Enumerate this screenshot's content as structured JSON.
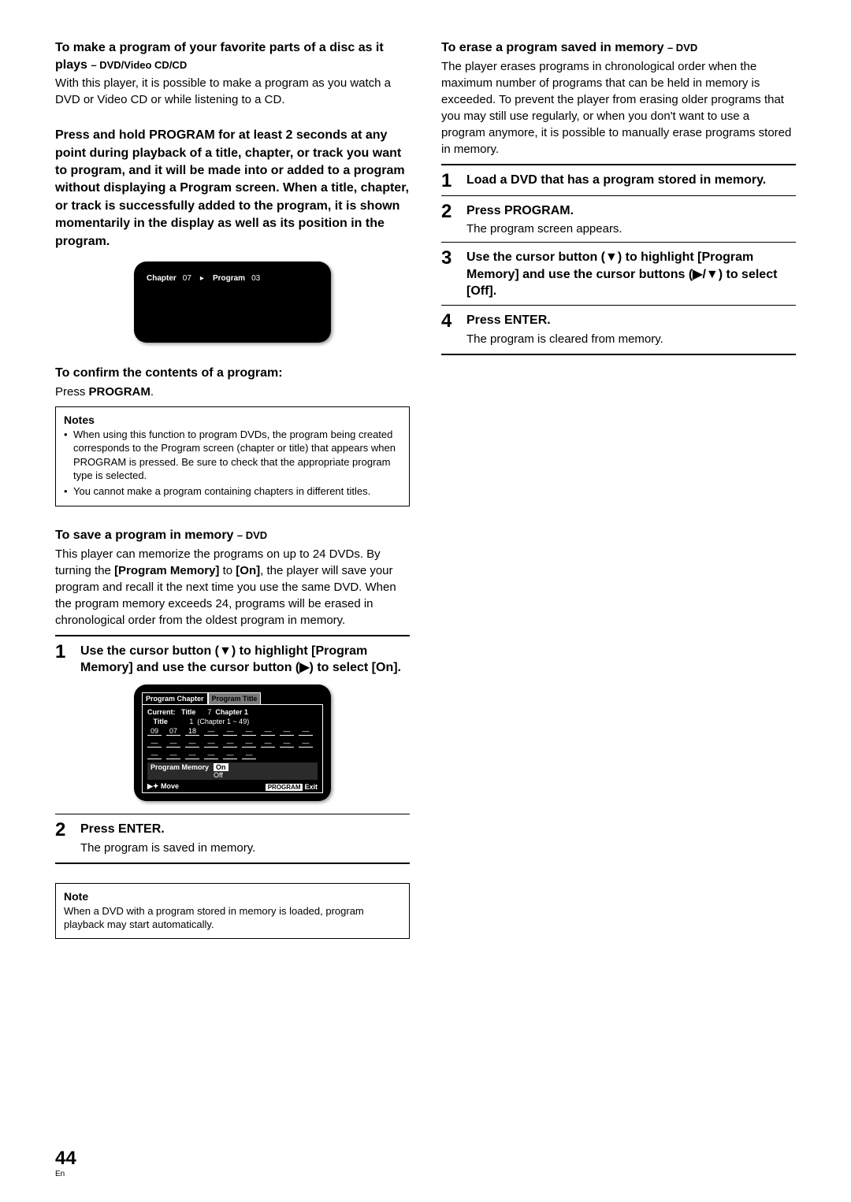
{
  "left": {
    "h1": "To make a program of your favorite parts of a disc as it plays",
    "h1sub": "– DVD/Video CD/CD",
    "p1": "With this player, it is possible to make a program as you watch a DVD or Video CD or while listening to a CD.",
    "bold": "Press and hold PROGRAM for at least 2 seconds at any point during playback of a title, chapter, or track you want to program, and it will be made into or added to a program without displaying a Program screen. When a title, chapter, or track is successfully added to the program, it is shown momentarily in the display as well as its position in the program.",
    "screen1": {
      "chapter_label": "Chapter",
      "chapter_val": "07",
      "program_label": "Program",
      "program_val": "03"
    },
    "confirm_h": "To confirm the contents of a program:",
    "confirm_p_pre": "Press ",
    "confirm_p_bold": "PROGRAM",
    "confirm_p_post": ".",
    "notes_title": "Notes",
    "notes": [
      "When using this function to program DVDs, the program being created corresponds to the Program screen (chapter or title) that appears when PROGRAM is pressed. Be sure to check that the appropriate program type is selected.",
      "You cannot make a program containing chapters in different titles."
    ],
    "save_h": "To save a program in memory",
    "save_sub": "– DVD",
    "save_p_a": "This player can memorize the programs on up to 24 DVDs. By turning the ",
    "save_p_b": "[Program Memory]",
    "save_p_c": " to ",
    "save_p_d": "[On]",
    "save_p_e": ", the player will save your program and recall it the next time you use the same DVD. When the program memory exceeds 24, programs will be erased in chronological order from the oldest program in memory.",
    "step1": "Use the cursor button (▼) to highlight [Program Memory] and use the cursor button (▶) to select [On].",
    "prog_screen": {
      "tab1": "Program Chapter",
      "tab2": "Program Title",
      "current": "Current:",
      "title_lbl": "Title",
      "title_val": "7",
      "chapter_lbl": "Chapter 1",
      "title2_lbl": "Title",
      "title2_val": "1",
      "chap_range": "(Chapter 1 ~ 49)",
      "slots": [
        "09",
        "07",
        "18",
        "—",
        "—",
        "—",
        "—",
        "—",
        "—",
        "—",
        "—",
        "—",
        "—",
        "—",
        "—",
        "—",
        "—",
        "—",
        "—",
        "—",
        "—",
        "—",
        "—",
        "—"
      ],
      "pm_label": "Program Memory",
      "pm_on": "On",
      "pm_off": "Off",
      "move": "Move",
      "prog_btn": "PROGRAM",
      "exit": "Exit"
    },
    "step2_title": "Press ENTER",
    "step2_desc": "The program is saved in memory.",
    "note2_title": "Note",
    "note2_text": "When a DVD with a program stored in memory is loaded, program playback may start automatically."
  },
  "right": {
    "h1": "To erase a program saved in memory",
    "h1sub": "– DVD",
    "p1": "The player erases programs in chronological order when the maximum number of programs that can be held in memory is exceeded. To prevent the player from erasing older programs that you may still use regularly, or when you don't want to use a program anymore, it is possible to manually erase programs stored in memory.",
    "step1": "Load a DVD that has a program stored in memory.",
    "step2_title": "Press PROGRAM.",
    "step2_desc": "The program screen appears.",
    "step3": "Use the cursor button (▼) to highlight [Program Memory] and use the cursor buttons (▶/▼) to select [Off].",
    "step4_title": "Press ENTER",
    "step4_desc": "The program is cleared from memory."
  },
  "page": {
    "num": "44",
    "lang": "En"
  }
}
